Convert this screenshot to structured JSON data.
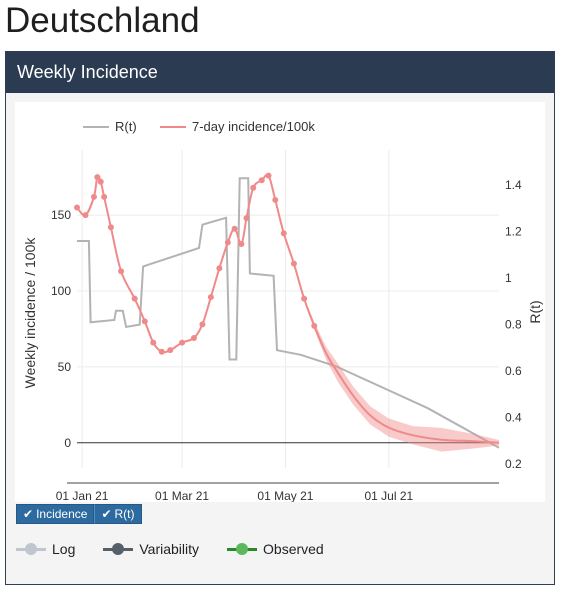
{
  "page": {
    "title": "Deutschland"
  },
  "card": {
    "header": "Weekly Incidence"
  },
  "colors": {
    "header_bg": "#2b3c52",
    "rt": "#b3b3b3",
    "incidence": "#f08a8a",
    "button": "#2c6aa0"
  },
  "buttons": [
    {
      "label": "Incidence",
      "icon": "check-icon"
    },
    {
      "label": "R(t)",
      "icon": "check-icon"
    }
  ],
  "legend_modes": [
    {
      "label": "Log",
      "color": "#bfc6cf"
    },
    {
      "label": "Variability",
      "color": "#56606a"
    },
    {
      "label": "Observed",
      "color": "#2a8a2a",
      "dot": "#5cb85c"
    }
  ],
  "chart_data": {
    "type": "line",
    "legend": [
      "R(t)",
      "7-day incidence/100k"
    ],
    "legend_position": "top-left",
    "ylabel": "Weekly incidence / 100k",
    "y2label": "R(t)",
    "x_ticks": [
      "01 Jan 21",
      "01 Mar 21",
      "01 May 21",
      "01 Jul 21"
    ],
    "x_range": [
      "2020-12-29",
      "2021-09-04"
    ],
    "y_ticks": [
      0,
      50,
      100,
      150
    ],
    "y_range": [
      -14,
      185
    ],
    "y2_ticks": [
      0.2,
      0.4,
      0.6,
      0.8,
      1,
      1.2,
      1.4
    ],
    "y2_range": [
      0.2,
      1.5
    ],
    "grid": true,
    "series": [
      {
        "name": "R(t)",
        "axis": "y2",
        "points": [
          [
            "2020-12-29",
            1.16
          ],
          [
            "2021-01-05",
            1.16
          ],
          [
            "2021-01-06",
            0.81
          ],
          [
            "2021-01-20",
            0.82
          ],
          [
            "2021-01-21",
            0.86
          ],
          [
            "2021-01-25",
            0.86
          ],
          [
            "2021-01-27",
            0.79
          ],
          [
            "2021-02-04",
            0.8
          ],
          [
            "2021-02-06",
            1.05
          ],
          [
            "2021-02-10",
            1.06
          ],
          [
            "2021-03-11",
            1.13
          ],
          [
            "2021-03-13",
            1.23
          ],
          [
            "2021-03-27",
            1.26
          ],
          [
            "2021-03-29",
            0.65
          ],
          [
            "2021-04-02",
            0.65
          ],
          [
            "2021-04-04",
            1.43
          ],
          [
            "2021-04-09",
            1.43
          ],
          [
            "2021-04-10",
            1.02
          ],
          [
            "2021-04-24",
            1.01
          ],
          [
            "2021-04-26",
            0.69
          ],
          [
            "2021-05-10",
            0.67
          ],
          [
            "2021-05-31",
            0.62
          ],
          [
            "2021-06-24",
            0.54
          ],
          [
            "2021-07-24",
            0.44
          ],
          [
            "2021-09-04",
            0.27
          ]
        ]
      },
      {
        "name": "7-day incidence/100k",
        "axis": "y",
        "points": [
          [
            "2020-12-29",
            155
          ],
          [
            "2021-01-03",
            150
          ],
          [
            "2021-01-08",
            162
          ],
          [
            "2021-01-10",
            175
          ],
          [
            "2021-01-12",
            172
          ],
          [
            "2021-01-14",
            162
          ],
          [
            "2021-01-18",
            142
          ],
          [
            "2021-01-24",
            113
          ],
          [
            "2021-02-01",
            95
          ],
          [
            "2021-02-07",
            80
          ],
          [
            "2021-02-12",
            66
          ],
          [
            "2021-02-17",
            60
          ],
          [
            "2021-02-22",
            61
          ],
          [
            "2021-03-01",
            66
          ],
          [
            "2021-03-08",
            69
          ],
          [
            "2021-03-13",
            78
          ],
          [
            "2021-03-18",
            96
          ],
          [
            "2021-03-23",
            115
          ],
          [
            "2021-03-28",
            132
          ],
          [
            "2021-04-01",
            141
          ],
          [
            "2021-04-05",
            131
          ],
          [
            "2021-04-08",
            148
          ],
          [
            "2021-04-12",
            168
          ],
          [
            "2021-04-17",
            173
          ],
          [
            "2021-04-21",
            176
          ],
          [
            "2021-04-25",
            160
          ],
          [
            "2021-04-30",
            138
          ],
          [
            "2021-05-06",
            118
          ],
          [
            "2021-05-12",
            95
          ],
          [
            "2021-05-18",
            77
          ],
          [
            "2021-05-25",
            59
          ],
          [
            "2021-06-01",
            46
          ],
          [
            "2021-06-10",
            31
          ],
          [
            "2021-06-20",
            18
          ],
          [
            "2021-07-01",
            10
          ],
          [
            "2021-07-15",
            5
          ],
          [
            "2021-08-01",
            2
          ],
          [
            "2021-08-20",
            1
          ],
          [
            "2021-09-04",
            0
          ]
        ]
      }
    ]
  }
}
